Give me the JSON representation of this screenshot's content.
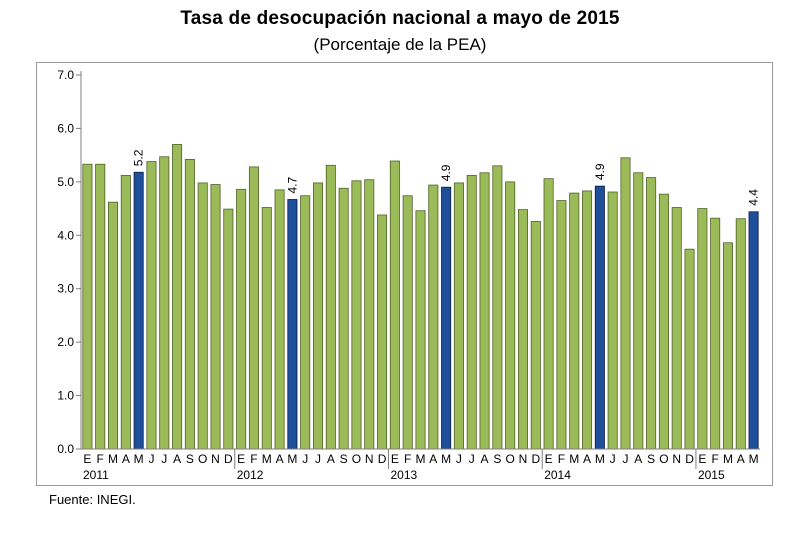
{
  "title": "Tasa de desocupación nacional a mayo de 2015",
  "subtitle": "(Porcentaje de la PEA)",
  "source": "Fuente: INEGI.",
  "colors": {
    "bar": "#9bbb59",
    "bar_edge": "#4f6228",
    "highlight": "#1f4e9a",
    "highlight_edge": "#0a1f44"
  },
  "chart_data": {
    "type": "bar",
    "ylim": [
      0,
      7
    ],
    "yticks": [
      "0.0",
      "1.0",
      "2.0",
      "3.0",
      "4.0",
      "5.0",
      "6.0",
      "7.0"
    ],
    "grid": false,
    "years": [
      {
        "label": "2011",
        "months": [
          "E",
          "F",
          "M",
          "A",
          "M",
          "J",
          "J",
          "A",
          "S",
          "O",
          "N",
          "D"
        ]
      },
      {
        "label": "2012",
        "months": [
          "E",
          "F",
          "M",
          "A",
          "M",
          "J",
          "J",
          "A",
          "S",
          "O",
          "N",
          "D"
        ]
      },
      {
        "label": "2013",
        "months": [
          "E",
          "F",
          "M",
          "A",
          "M",
          "J",
          "J",
          "A",
          "S",
          "O",
          "N",
          "D"
        ]
      },
      {
        "label": "2014",
        "months": [
          "E",
          "F",
          "M",
          "A",
          "M",
          "J",
          "J",
          "A",
          "S",
          "O",
          "N",
          "D"
        ]
      },
      {
        "label": "2015",
        "months": [
          "E",
          "F",
          "M",
          "A",
          "M"
        ]
      }
    ],
    "values": [
      5.33,
      5.33,
      4.62,
      5.12,
      5.18,
      5.38,
      5.47,
      5.7,
      5.42,
      4.98,
      4.95,
      4.49,
      4.86,
      5.28,
      4.52,
      4.85,
      4.67,
      4.74,
      4.98,
      5.31,
      4.88,
      5.02,
      5.04,
      4.38,
      5.39,
      4.74,
      4.46,
      4.94,
      4.9,
      4.98,
      5.12,
      5.17,
      5.3,
      5.0,
      4.48,
      4.26,
      5.06,
      4.65,
      4.79,
      4.83,
      4.92,
      4.81,
      5.45,
      5.17,
      5.08,
      4.77,
      4.52,
      3.74,
      4.5,
      4.32,
      3.86,
      4.31,
      4.44
    ],
    "highlight": [
      {
        "index": 4,
        "label": "5.2"
      },
      {
        "index": 16,
        "label": "4.7"
      },
      {
        "index": 28,
        "label": "4.9"
      },
      {
        "index": 40,
        "label": "4.9"
      },
      {
        "index": 52,
        "label": "4.4"
      }
    ]
  }
}
